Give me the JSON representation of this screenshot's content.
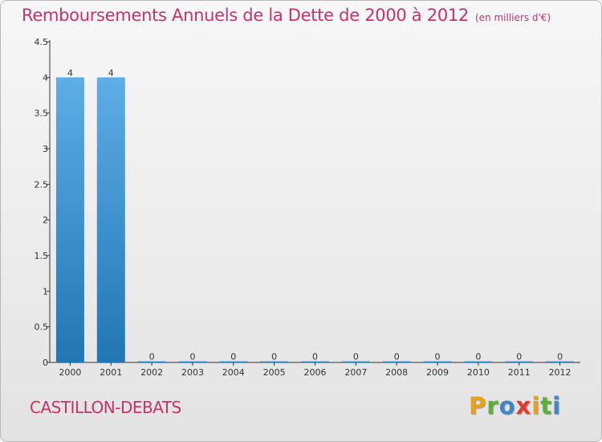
{
  "header": {
    "title": "Remboursements Annuels de la Dette de 2000 à 2012",
    "subtitle": "(en milliers d'€)"
  },
  "footer": {
    "commune": "CASTILLON-DEBATS",
    "brand_letters": [
      "P",
      "r",
      "o",
      "x",
      "i",
      "t",
      "i"
    ],
    "brand_colors": [
      "#e8a21a",
      "#5fae3b",
      "#3f88c5",
      "#e23b2d",
      "#e8a21a",
      "#5fae3b",
      "#3f88c5"
    ]
  },
  "colors": {
    "bar_top": "#5dade6",
    "bar_bottom": "#2276b4",
    "axis": "#333333",
    "text": "#333333"
  },
  "chart_data": {
    "type": "bar",
    "title": "Remboursements Annuels de la Dette de 2000 à 2012",
    "categories": [
      "2000",
      "2001",
      "2002",
      "2003",
      "2004",
      "2005",
      "2006",
      "2007",
      "2008",
      "2009",
      "2010",
      "2011",
      "2012"
    ],
    "values": [
      4,
      4,
      0,
      0,
      0,
      0,
      0,
      0,
      0,
      0,
      0,
      0,
      0
    ],
    "data_labels": [
      "4",
      "4",
      "0",
      "0",
      "0",
      "0",
      "0",
      "0",
      "0",
      "0",
      "0",
      "0",
      "0"
    ],
    "ylim": [
      0,
      4.5
    ],
    "yticks": [
      0,
      0.5,
      1,
      1.5,
      2,
      2.5,
      3,
      3.5,
      4,
      4.5
    ],
    "ytick_labels": [
      "0",
      "0.5",
      "1",
      "1.5",
      "2",
      "2.5",
      "3",
      "3.5",
      "4",
      "4.5"
    ],
    "xlabel": "",
    "ylabel": "",
    "grid": false,
    "legend": "none"
  }
}
